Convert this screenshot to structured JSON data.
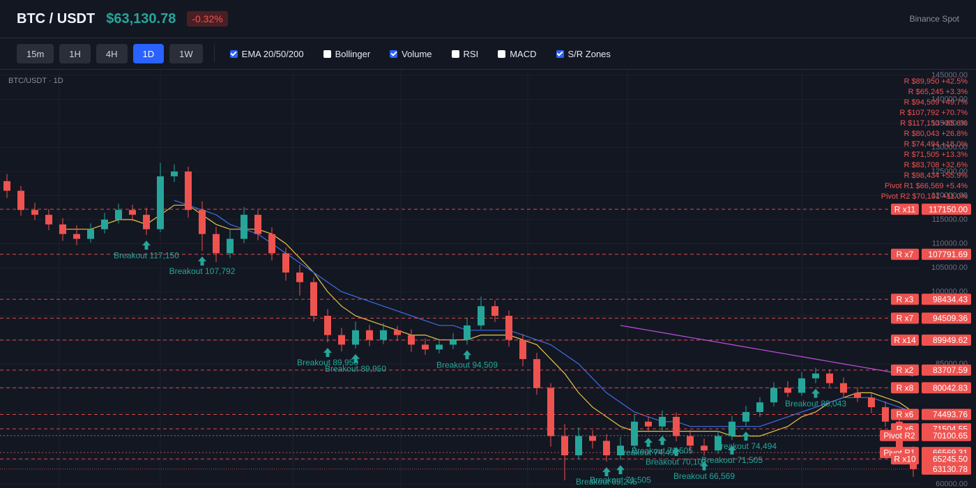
{
  "header": {
    "symbol": "BTC / USDT",
    "price": "$63,130.78",
    "change": "-0.32%",
    "exchange": "Binance Spot"
  },
  "toolbar": {
    "timeframes": [
      {
        "label": "15m",
        "active": false
      },
      {
        "label": "1H",
        "active": false
      },
      {
        "label": "4H",
        "active": false
      },
      {
        "label": "1D",
        "active": true
      },
      {
        "label": "1W",
        "active": false
      }
    ],
    "toggles": [
      {
        "label": "EMA 20/50/200",
        "checked": true
      },
      {
        "label": "Bollinger",
        "checked": false
      },
      {
        "label": "Volume",
        "checked": true
      },
      {
        "label": "RSI",
        "checked": false
      },
      {
        "label": "MACD",
        "checked": false
      },
      {
        "label": "S/R Zones",
        "checked": true
      }
    ]
  },
  "chart_data": {
    "type": "candlestick",
    "title": "BTC/USDT · 1D",
    "up_color": "#26a69a",
    "down_color": "#ef5350",
    "open": [
      123000,
      121000,
      117000,
      116000,
      114000,
      112000,
      111000,
      113000,
      115000,
      117000,
      116000,
      113000,
      124000,
      125000,
      117000,
      112000,
      108000,
      111000,
      116000,
      112000,
      108000,
      104000,
      102000,
      95000,
      91000,
      89000,
      92000,
      90000,
      92000,
      91000,
      89000,
      88000,
      89000,
      90000,
      93000,
      97000,
      95000,
      90000,
      86000,
      80000,
      70000,
      66000,
      70000,
      69000,
      66000,
      68000,
      73000,
      72000,
      74000,
      70000,
      68000,
      67000,
      70000,
      73000,
      75000,
      77000,
      80000,
      79000,
      82000,
      83000,
      81000,
      79000,
      78000,
      76000,
      73000,
      67000
    ],
    "high": [
      124500,
      122000,
      118500,
      117200,
      115300,
      113800,
      114200,
      116400,
      118300,
      118100,
      117500,
      126800,
      126500,
      126000,
      118800,
      113500,
      112800,
      117600,
      117000,
      113400,
      109200,
      105600,
      103000,
      96400,
      92500,
      93800,
      93100,
      93500,
      92900,
      92200,
      90300,
      90200,
      91400,
      94600,
      99000,
      98200,
      96100,
      91200,
      87300,
      81000,
      72500,
      71800,
      71200,
      70400,
      69800,
      74600,
      74100,
      75300,
      74900,
      71300,
      69500,
      71100,
      74200,
      76300,
      78100,
      81200,
      81400,
      83300,
      84200,
      83900,
      82200,
      80100,
      78900,
      77200,
      73800,
      67900
    ],
    "low": [
      119500,
      115800,
      114900,
      112800,
      110600,
      109700,
      110200,
      112100,
      114200,
      114700,
      111800,
      112400,
      122800,
      115400,
      108500,
      106200,
      107000,
      110100,
      110700,
      106500,
      102300,
      99200,
      93800,
      89500,
      87600,
      88200,
      88700,
      89100,
      89800,
      87500,
      86900,
      87200,
      88100,
      89000,
      92200,
      93700,
      88600,
      84500,
      78600,
      67800,
      60800,
      65200,
      67400,
      64700,
      65100,
      67300,
      70800,
      71200,
      68900,
      66700,
      65900,
      66300,
      69200,
      72100,
      74000,
      76200,
      78100,
      78400,
      81000,
      80200,
      78000,
      77100,
      74800,
      71900,
      65800,
      61500
    ],
    "close": [
      121000,
      117000,
      116000,
      114000,
      112000,
      111000,
      113000,
      115000,
      117000,
      116000,
      113000,
      124000,
      125000,
      117000,
      112000,
      108000,
      111000,
      116000,
      112000,
      108000,
      104000,
      102000,
      95000,
      91000,
      89000,
      92000,
      90000,
      92000,
      91000,
      89000,
      88000,
      89000,
      90000,
      93000,
      97000,
      95000,
      90000,
      86000,
      80000,
      70000,
      66000,
      70000,
      69000,
      66000,
      68000,
      73000,
      72000,
      74000,
      70000,
      68000,
      67000,
      70000,
      73000,
      75000,
      77000,
      80000,
      79000,
      82000,
      83000,
      81000,
      79000,
      78000,
      76000,
      73000,
      67000,
      63130.78
    ],
    "series": [
      {
        "color": "#e8c547",
        "values": [
          null,
          null,
          null,
          null,
          113000,
          113000,
          113000,
          114000,
          115000,
          115000,
          114000,
          116000,
          118000,
          118000,
          116000,
          114000,
          113000,
          113000,
          113000,
          112000,
          110000,
          107000,
          104000,
          100000,
          97000,
          95000,
          94000,
          93000,
          92000,
          91000,
          91000,
          90000,
          90000,
          90000,
          91000,
          91000,
          91000,
          90000,
          89000,
          86000,
          83000,
          79000,
          76000,
          74000,
          72000,
          71000,
          71000,
          71000,
          71000,
          71000,
          71000,
          71000,
          70000,
          70000,
          70000,
          71000,
          72000,
          74000,
          75000,
          77000,
          78000,
          79000,
          79000,
          78000,
          77000,
          75000
        ]
      },
      {
        "color": "#3d6ee8",
        "values": [
          null,
          null,
          null,
          null,
          null,
          null,
          null,
          null,
          null,
          null,
          null,
          null,
          119000,
          118000,
          117000,
          116000,
          114000,
          113000,
          112000,
          110000,
          108000,
          106000,
          104000,
          102000,
          100000,
          99000,
          98000,
          97000,
          96000,
          95000,
          94000,
          93000,
          93000,
          92000,
          92000,
          92000,
          92000,
          91000,
          90000,
          89000,
          87000,
          85000,
          82000,
          79000,
          77000,
          75000,
          74000,
          73000,
          73000,
          72000,
          72000,
          72000,
          72000,
          72000,
          72000,
          73000,
          74000,
          75000,
          76000,
          77000,
          78000,
          78000,
          78000,
          77000,
          76000,
          75000
        ]
      },
      {
        "color": "#c04ee0",
        "values": [
          null,
          null,
          null,
          null,
          null,
          null,
          null,
          null,
          null,
          null,
          null,
          null,
          null,
          null,
          null,
          null,
          null,
          null,
          null,
          null,
          null,
          null,
          null,
          null,
          null,
          null,
          null,
          null,
          null,
          null,
          null,
          null,
          null,
          null,
          null,
          null,
          null,
          null,
          null,
          null,
          null,
          null,
          null,
          null,
          93000,
          92500,
          92000,
          91500,
          91000,
          90500,
          90000,
          89500,
          89000,
          88500,
          88000,
          87500,
          87000,
          86500,
          86000,
          85500,
          85000,
          84500,
          84000,
          83500,
          83000,
          82500
        ]
      }
    ],
    "ylim": [
      60000,
      145000
    ],
    "yticks": [
      {
        "value": 60000,
        "label": "60000.00"
      },
      {
        "value": 65000,
        "label": "65000.00"
      },
      {
        "value": 70000,
        "label": "70000.00"
      },
      {
        "value": 75000,
        "label": "75000.00"
      },
      {
        "value": 80000,
        "label": "80000.00"
      },
      {
        "value": 85000,
        "label": "85000.00"
      },
      {
        "value": 90000,
        "label": "90000.00"
      },
      {
        "value": 95000,
        "label": "95000.00"
      },
      {
        "value": 100000,
        "label": "100000.00"
      },
      {
        "value": 105000,
        "label": "105000.00"
      },
      {
        "value": 110000,
        "label": "110000.00"
      },
      {
        "value": 115000,
        "label": "115000.00"
      },
      {
        "value": 120000,
        "label": "120000.00"
      },
      {
        "value": 125000,
        "label": "125000.00"
      },
      {
        "value": 130000,
        "label": "130000.00"
      },
      {
        "value": 135000,
        "label": "135000.00"
      },
      {
        "value": 140000,
        "label": "140000.00"
      },
      {
        "value": 145000,
        "label": "145000.00"
      }
    ],
    "levels": [
      {
        "label": "R x11",
        "value": 117150,
        "value_label": "117150.00",
        "kind": "resistance"
      },
      {
        "label": "R x7",
        "value": 107791.69,
        "value_label": "107791.69",
        "kind": "resistance"
      },
      {
        "label": "R x3",
        "value": 98434.43,
        "value_label": "98434.43",
        "kind": "resistance"
      },
      {
        "label": "R x7",
        "value": 94509.36,
        "value_label": "94509.36",
        "kind": "resistance"
      },
      {
        "label": "R x14",
        "value": 89949.62,
        "value_label": "89949.62",
        "kind": "resistance"
      },
      {
        "label": "R x2",
        "value": 83707.59,
        "value_label": "83707.59",
        "kind": "resistance"
      },
      {
        "label": "R x8",
        "value": 80042.83,
        "value_label": "80042.83",
        "kind": "resistance"
      },
      {
        "label": "R x6",
        "value": 74493.76,
        "value_label": "74493.76",
        "kind": "resistance"
      },
      {
        "label": "R x6",
        "value": 71504.55,
        "value_label": "71504.55",
        "kind": "resistance"
      },
      {
        "label": "Pivot R2",
        "value": 70100.65,
        "value_label": "70100.65",
        "kind": "pivot"
      },
      {
        "label": "Pivot R1",
        "value": 66569.31,
        "value_label": "66569.31",
        "kind": "pivot"
      },
      {
        "label": "R x10",
        "value": 65245.5,
        "value_label": "65245.50",
        "kind": "resistance"
      }
    ],
    "last_price": {
      "value": 63130.78,
      "label": "63130.78"
    },
    "level_list": [
      "R $89,950 +42.5%",
      "R $65,245 +3.3%",
      "R $94,509 +49.7%",
      "R $107,792 +70.7%",
      "R $117,150 +85.6%",
      "R $80,043 +26.8%",
      "R $74,494 +18.0%",
      "R $71,505 +13.3%",
      "R $83,708 +32.6%",
      "R $98,434 +55.9%",
      "Pivot R1 $66,569 +5.4%",
      "Pivot R2 $70,101 +11.0%"
    ],
    "annotations": [
      {
        "text": "Breakout 117,150",
        "x": 10
      },
      {
        "text": "Breakout 107,792",
        "x": 14
      },
      {
        "text": "Breakout 89,950",
        "x": 23
      },
      {
        "text": "Breakout 89,950",
        "x": 25
      },
      {
        "text": "Breakout 94,509",
        "x": 33
      },
      {
        "text": "Breakout 65,245",
        "x": 43
      },
      {
        "text": "Breakout 71,505",
        "x": 44
      },
      {
        "text": "Breakout 74,494",
        "x": 46
      },
      {
        "text": "Breakout 71,505",
        "x": 47
      },
      {
        "text": "Breakout 70,101",
        "x": 48
      },
      {
        "text": "Breakout 66,569",
        "x": 50
      },
      {
        "text": "Breakout 71,505",
        "x": 52
      },
      {
        "text": "Breakout 74,494",
        "x": 53
      },
      {
        "text": "Breakout 80,043",
        "x": 58
      }
    ]
  }
}
